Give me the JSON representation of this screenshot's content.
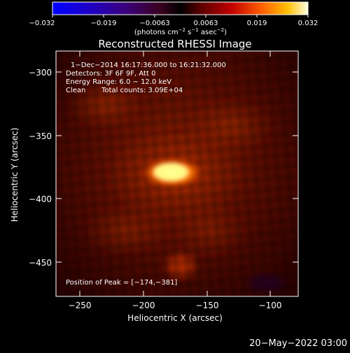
{
  "colorbar": {
    "min_label": "−0.032",
    "ticks": [
      "−0.019",
      "−0.0063",
      "0.0063",
      "0.019"
    ],
    "max_label": "0.032",
    "unit_prefix": "(photons cm",
    "unit_exp1": "−2",
    "unit_mid": " s",
    "unit_exp2": "−1",
    "unit_mid2": " asec",
    "unit_exp3": "−2",
    "unit_suffix": ")"
  },
  "title": "Reconstructed RHESSI Image",
  "annotations": {
    "time_range": "1−Dec−2014 16:17:36.000 to 16:21:32.000",
    "detectors": "Detectors: 3F 6F 9F, Att 0",
    "energy": "Energy Range: 6.0 − 12.0 keV",
    "method": "Clean",
    "counts": "Total counts: 3.09E+04",
    "peak": "Position of Peak = [−174,−381]"
  },
  "axes": {
    "xlabel": "Heliocentric X (arcsec)",
    "ylabel": "Heliocentric Y (arcsec)",
    "xticks": [
      "−250",
      "−200",
      "−150",
      "−100"
    ],
    "yticks": [
      "−300",
      "−350",
      "−400",
      "−450"
    ]
  },
  "timestamp": "20−May−2022 03:00",
  "colors": {
    "background": "#000000",
    "text": "#ffffff",
    "image_dark": "#3a0000",
    "image_mid": "#a82a00",
    "image_hot": "#ffff60"
  }
}
